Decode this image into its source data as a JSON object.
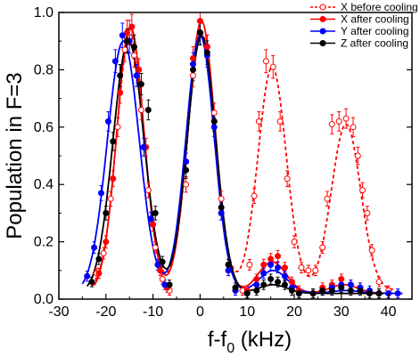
{
  "chart_data": {
    "type": "scatter",
    "xlabel": "f-f",
    "xlabel_sub": "0",
    "xlabel_unit": " (kHz)",
    "ylabel": "Population in F=3",
    "xlim": [
      -30,
      45
    ],
    "ylim": [
      0,
      1.0
    ],
    "xticks": [
      -30,
      -20,
      -10,
      0,
      10,
      20,
      30,
      40
    ],
    "xtick_labels": [
      "-30",
      "-20",
      "-10",
      "0",
      "10",
      "20",
      "30",
      "40"
    ],
    "yticks": [
      0.0,
      0.2,
      0.4,
      0.6,
      0.8,
      1.0
    ],
    "ytick_labels": [
      "0.0",
      "0.2",
      "0.4",
      "0.6",
      "0.8",
      "1.0"
    ],
    "grid": false,
    "legend_position": "top-right",
    "series": [
      {
        "name": "X before cooling",
        "color": "#ff0000",
        "marker": "open-circle",
        "line": "dashed",
        "points": [
          [
            -22,
            0.09
          ],
          [
            -20.5,
            0.16
          ],
          [
            -19,
            0.35
          ],
          [
            -17.5,
            0.6
          ],
          [
            -16,
            0.87
          ],
          [
            -15,
            0.93
          ],
          [
            -14,
            0.85
          ],
          [
            -12.5,
            0.66
          ],
          [
            -11,
            0.38
          ],
          [
            -9.5,
            0.18
          ],
          [
            -8,
            0.07
          ],
          [
            -6.5,
            0.03
          ],
          [
            -3,
            0.4
          ],
          [
            -1.5,
            0.78
          ],
          [
            0,
            0.93
          ],
          [
            1.5,
            0.88
          ],
          [
            3,
            0.65
          ],
          [
            4.5,
            0.35
          ],
          [
            6,
            0.12
          ],
          [
            7.5,
            0.04
          ],
          [
            9,
            0.03
          ],
          [
            10.5,
            0.12
          ],
          [
            11.5,
            0.36
          ],
          [
            12.5,
            0.62
          ],
          [
            14,
            0.83
          ],
          [
            15.5,
            0.81
          ],
          [
            17,
            0.62
          ],
          [
            18.5,
            0.42
          ],
          [
            20,
            0.2
          ],
          [
            21.5,
            0.11
          ],
          [
            23,
            0.1
          ],
          [
            24.5,
            0.1
          ],
          [
            26,
            0.18
          ],
          [
            27,
            0.35
          ],
          [
            28,
            0.61
          ],
          [
            29.5,
            0.62
          ],
          [
            31,
            0.63
          ],
          [
            32.5,
            0.6
          ],
          [
            33.5,
            0.5
          ],
          [
            34.5,
            0.38
          ],
          [
            35.5,
            0.3
          ],
          [
            36.5,
            0.17
          ],
          [
            38,
            0.06
          ],
          [
            40,
            0.03
          ]
        ],
        "fit": {
          "baseline": 0.03,
          "peaks": [
            [
              -14.8,
              0.93,
              2.9
            ],
            [
              0.3,
              0.93,
              2.9
            ],
            [
              15.3,
              0.81,
              3.0
            ],
            [
              31.0,
              0.61,
              3.1
            ]
          ]
        }
      },
      {
        "name": "X after cooling",
        "color": "#ff0000",
        "marker": "filled-circle",
        "line": "solid",
        "points": [
          [
            -21.5,
            0.09
          ],
          [
            -20,
            0.2
          ],
          [
            -18.5,
            0.42
          ],
          [
            -17,
            0.72
          ],
          [
            -15.5,
            0.93
          ],
          [
            -14.5,
            0.95
          ],
          [
            -13,
            0.8
          ],
          [
            -11.5,
            0.53
          ],
          [
            -10,
            0.26
          ],
          [
            -8.5,
            0.1
          ],
          [
            -7,
            0.04
          ],
          [
            -3,
            0.48
          ],
          [
            -1.5,
            0.84
          ],
          [
            0,
            0.97
          ],
          [
            1.5,
            0.88
          ],
          [
            3,
            0.62
          ],
          [
            4.5,
            0.3
          ],
          [
            6,
            0.1
          ],
          [
            7.5,
            0.03
          ],
          [
            10,
            0.03
          ],
          [
            12,
            0.07
          ],
          [
            13.5,
            0.12
          ],
          [
            15,
            0.14
          ],
          [
            16.5,
            0.15
          ],
          [
            18,
            0.11
          ],
          [
            19.5,
            0.06
          ],
          [
            21,
            0.03
          ],
          [
            24,
            0.02
          ],
          [
            26,
            0.04
          ],
          [
            28,
            0.05
          ],
          [
            30,
            0.07
          ],
          [
            32,
            0.05
          ],
          [
            34,
            0.04
          ],
          [
            36,
            0.02
          ],
          [
            38,
            0.02
          ],
          [
            40,
            0.02
          ]
        ],
        "fit": {
          "baseline": 0.02,
          "peaks": [
            [
              -14.8,
              0.95,
              2.9
            ],
            [
              0.3,
              0.97,
              2.9
            ],
            [
              15.3,
              0.13,
              3.0
            ],
            [
              30.5,
              0.05,
              3.0
            ]
          ]
        }
      },
      {
        "name": "Y after cooling",
        "color": "#0000ff",
        "marker": "filled-circle",
        "line": "solid",
        "points": [
          [
            -24,
            0.08
          ],
          [
            -22.5,
            0.18
          ],
          [
            -21,
            0.37
          ],
          [
            -19.5,
            0.62
          ],
          [
            -18,
            0.83
          ],
          [
            -16.5,
            0.92
          ],
          [
            -15,
            0.9
          ],
          [
            -13.5,
            0.78
          ],
          [
            -12,
            0.53
          ],
          [
            -10.5,
            0.28
          ],
          [
            -9,
            0.12
          ],
          [
            -7.5,
            0.05
          ],
          [
            -3,
            0.48
          ],
          [
            -1.5,
            0.82
          ],
          [
            0,
            0.93
          ],
          [
            1.5,
            0.85
          ],
          [
            3,
            0.6
          ],
          [
            4.5,
            0.3
          ],
          [
            6,
            0.1
          ],
          [
            7.5,
            0.03
          ],
          [
            10,
            0.02
          ],
          [
            12,
            0.05
          ],
          [
            13.5,
            0.09
          ],
          [
            15,
            0.12
          ],
          [
            16.5,
            0.11
          ],
          [
            18,
            0.08
          ],
          [
            19.5,
            0.04
          ],
          [
            21,
            0.02
          ],
          [
            24,
            0.02
          ],
          [
            26,
            0.03
          ],
          [
            28,
            0.04
          ],
          [
            30,
            0.05
          ],
          [
            32,
            0.05
          ],
          [
            34,
            0.04
          ],
          [
            36,
            0.03
          ],
          [
            38,
            0.02
          ],
          [
            40,
            0.02
          ],
          [
            42,
            0.02
          ]
        ],
        "fit": {
          "baseline": 0.02,
          "peaks": [
            [
              -16.3,
              0.9,
              3.4
            ],
            [
              0.0,
              0.92,
              3.0
            ],
            [
              15.5,
              0.1,
              3.0
            ],
            [
              31.0,
              0.03,
              3.0
            ]
          ]
        }
      },
      {
        "name": "Z after cooling",
        "color": "#000000",
        "marker": "filled-circle",
        "line": "solid",
        "points": [
          [
            -23,
            0.06
          ],
          [
            -21.5,
            0.14
          ],
          [
            -20,
            0.3
          ],
          [
            -18.5,
            0.55
          ],
          [
            -17,
            0.78
          ],
          [
            -15.5,
            0.9
          ],
          [
            -14,
            0.88
          ],
          [
            -12.5,
            0.75
          ],
          [
            -11,
            0.66
          ],
          [
            -9.5,
            0.3
          ],
          [
            -8,
            0.13
          ],
          [
            -6.5,
            0.05
          ],
          [
            -3,
            0.45
          ],
          [
            -1.5,
            0.8
          ],
          [
            0,
            0.93
          ],
          [
            1.5,
            0.86
          ],
          [
            3,
            0.62
          ],
          [
            4.5,
            0.32
          ],
          [
            6,
            0.12
          ],
          [
            7.5,
            0.04
          ],
          [
            10,
            0.02
          ],
          [
            12,
            0.03
          ],
          [
            13.5,
            0.05
          ],
          [
            15,
            0.07
          ],
          [
            16.5,
            0.06
          ],
          [
            18,
            0.05
          ],
          [
            19.5,
            0.03
          ],
          [
            21,
            0.02
          ],
          [
            24,
            0.02
          ],
          [
            26,
            0.03
          ],
          [
            28,
            0.03
          ],
          [
            30,
            0.04
          ],
          [
            32,
            0.03
          ],
          [
            34,
            0.03
          ],
          [
            36,
            0.02
          ],
          [
            38,
            0.02
          ]
        ],
        "fit": {
          "baseline": 0.02,
          "peaks": [
            [
              -15.2,
              0.9,
              3.3
            ],
            [
              0.3,
              0.92,
              3.0
            ],
            [
              15.5,
              0.05,
              3.0
            ],
            [
              31.0,
              0.02,
              3.0
            ]
          ]
        }
      }
    ]
  }
}
